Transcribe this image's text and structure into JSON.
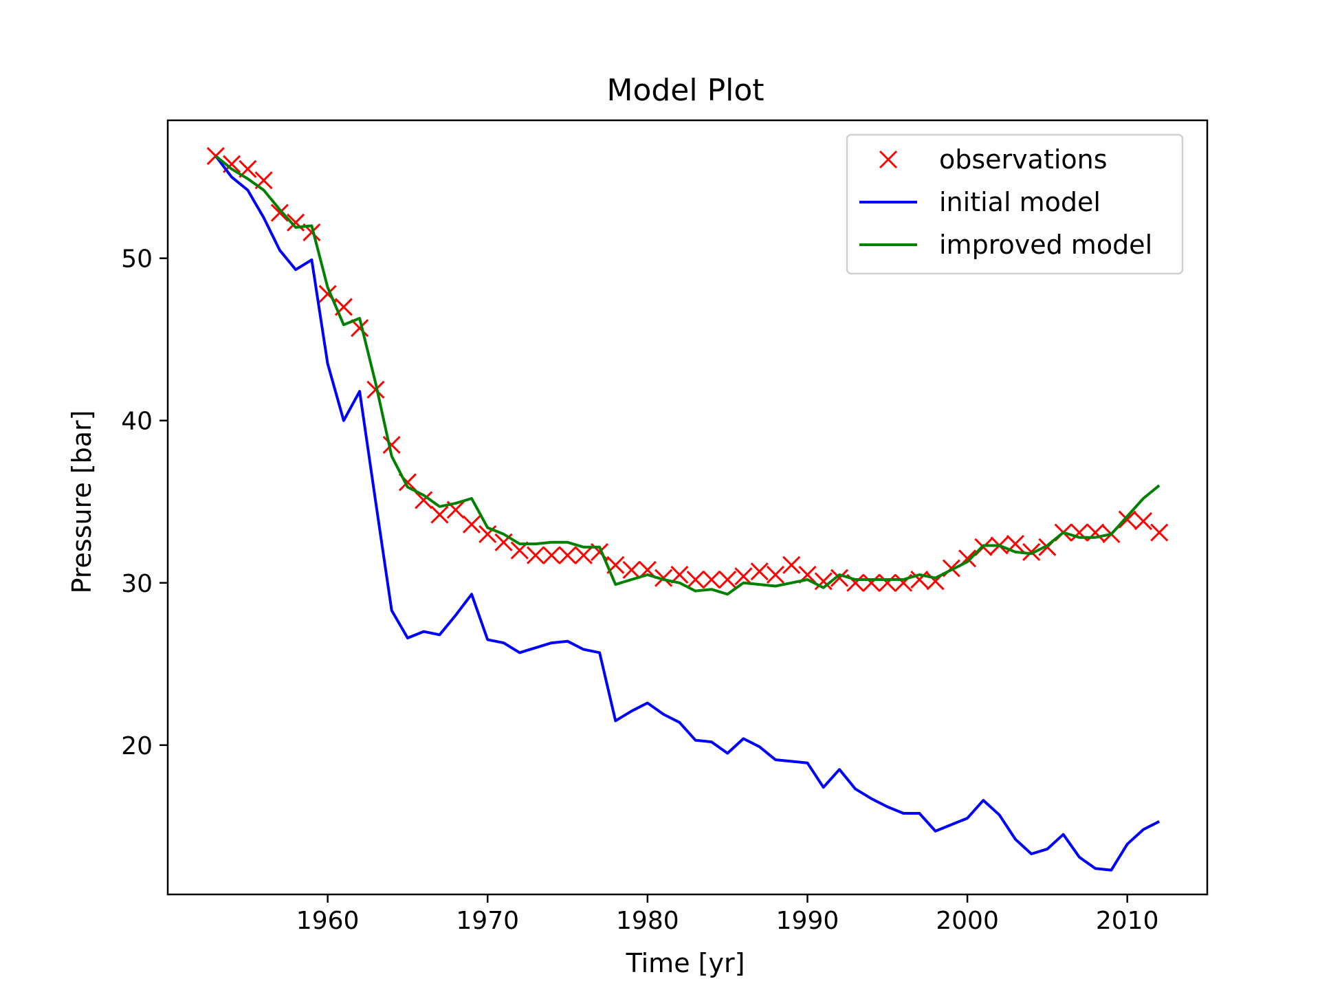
{
  "chart_data": {
    "type": "line",
    "title": "Model Plot",
    "xlabel": "Time [yr]",
    "ylabel": "Pressure [bar]",
    "xlim": [
      1950,
      2015
    ],
    "ylim": [
      10.8,
      58.5
    ],
    "xticks": [
      1960,
      1970,
      1980,
      1990,
      2000,
      2010
    ],
    "yticks": [
      20,
      30,
      40,
      50
    ],
    "grid": false,
    "legend_position": "top-right",
    "x": [
      1953,
      1954,
      1955,
      1956,
      1957,
      1958,
      1959,
      1960,
      1961,
      1962,
      1963,
      1964,
      1965,
      1966,
      1967,
      1968,
      1969,
      1970,
      1971,
      1972,
      1973,
      1974,
      1975,
      1976,
      1977,
      1978,
      1979,
      1980,
      1981,
      1982,
      1983,
      1984,
      1985,
      1986,
      1987,
      1988,
      1989,
      1990,
      1991,
      1992,
      1993,
      1994,
      1995,
      1996,
      1997,
      1998,
      1999,
      2000,
      2001,
      2002,
      2003,
      2004,
      2005,
      2006,
      2007,
      2008,
      2009,
      2010,
      2011,
      2012
    ],
    "series": [
      {
        "name": "observations",
        "style": "markers",
        "marker": "x",
        "color": "#ff0000",
        "values": [
          56.3,
          55.8,
          55.5,
          54.8,
          52.8,
          52.2,
          51.6,
          47.8,
          47.0,
          45.7,
          41.9,
          38.5,
          36.2,
          35.1,
          34.2,
          34.5,
          33.6,
          33.0,
          32.5,
          32.0,
          31.7,
          31.7,
          31.7,
          31.7,
          31.9,
          31.1,
          30.8,
          30.8,
          30.3,
          30.5,
          30.2,
          30.2,
          30.2,
          30.4,
          30.7,
          30.5,
          31.1,
          30.5,
          30.1,
          30.3,
          30.0,
          30.0,
          30.0,
          30.0,
          30.2,
          30.1,
          30.9,
          31.5,
          32.2,
          32.3,
          32.4,
          31.9,
          32.2,
          33.1,
          33.1,
          33.1,
          33.0,
          33.9,
          33.8,
          33.1
        ]
      },
      {
        "name": "initial model",
        "style": "line",
        "color": "#0000ff",
        "values": [
          56.3,
          55.0,
          54.2,
          52.5,
          50.5,
          49.3,
          49.9,
          43.5,
          40.0,
          41.8,
          35.0,
          28.3,
          26.6,
          27.0,
          26.8,
          28.0,
          29.3,
          26.5,
          26.3,
          25.7,
          26.0,
          26.3,
          26.4,
          25.9,
          25.7,
          21.5,
          22.1,
          22.6,
          21.9,
          21.4,
          20.3,
          20.2,
          19.5,
          20.4,
          19.9,
          19.1,
          19.0,
          18.9,
          17.4,
          18.5,
          17.3,
          16.7,
          16.2,
          15.8,
          15.8,
          14.7,
          15.1,
          15.5,
          16.6,
          15.7,
          14.2,
          13.3,
          13.6,
          14.5,
          13.1,
          12.4,
          12.3,
          13.9,
          14.8,
          15.3
        ]
      },
      {
        "name": "improved model",
        "style": "line",
        "color": "#008000",
        "values": [
          56.3,
          55.5,
          54.9,
          54.2,
          53.0,
          51.9,
          52.0,
          48.2,
          45.9,
          46.3,
          42.3,
          37.8,
          35.9,
          35.4,
          34.7,
          34.9,
          35.2,
          33.4,
          33.0,
          32.4,
          32.4,
          32.5,
          32.5,
          32.2,
          32.2,
          29.9,
          30.2,
          30.5,
          30.2,
          30.0,
          29.5,
          29.6,
          29.3,
          30.0,
          29.9,
          29.8,
          30.0,
          30.2,
          29.7,
          30.5,
          30.2,
          30.2,
          30.2,
          30.2,
          30.5,
          30.3,
          30.8,
          31.3,
          32.3,
          32.3,
          31.9,
          31.8,
          32.3,
          33.1,
          32.8,
          32.8,
          33.0,
          34.1,
          35.2,
          36.0
        ]
      }
    ]
  }
}
